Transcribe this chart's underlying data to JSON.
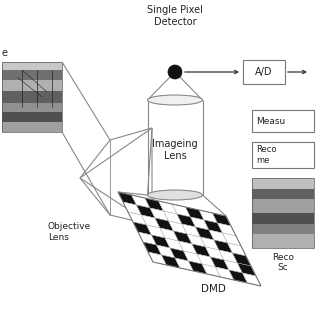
{
  "bg_color": "#ffffff",
  "labels": {
    "single_pixel_detector": "Single Pixel\nDetector",
    "ad": "A/D",
    "imageing_lens": "Imageing\nLens",
    "dmd": "DMD",
    "objective_lens": "Objective\nLens",
    "scene_label": "e",
    "measurements": "Measu",
    "recovery": "Reco\nme",
    "recovered_line1": "Reco",
    "recovered_line2": "Sc"
  },
  "colors": {
    "line": "#888888",
    "line_dark": "#555555",
    "box_outline": "#777777",
    "dmd_black": "#111111",
    "dmd_white": "#ffffff",
    "dmd_grid": "#aaaaaa",
    "detector": "#111111",
    "text": "#222222",
    "bg": "#ffffff",
    "img_dark": "#444444",
    "img_mid": "#888888",
    "img_light": "#cccccc"
  },
  "dmd_pattern": [
    [
      0,
      1,
      0,
      1,
      0,
      1,
      0,
      1
    ],
    [
      1,
      0,
      1,
      0,
      1,
      0,
      1,
      0
    ],
    [
      0,
      1,
      0,
      0,
      0,
      1,
      0,
      1
    ],
    [
      1,
      0,
      0,
      1,
      0,
      0,
      1,
      0
    ],
    [
      0,
      1,
      0,
      0,
      0,
      1,
      0,
      1
    ],
    [
      1,
      0,
      1,
      0,
      1,
      0,
      1,
      0
    ],
    [
      0,
      1,
      0,
      1,
      0,
      1,
      0,
      1
    ]
  ]
}
